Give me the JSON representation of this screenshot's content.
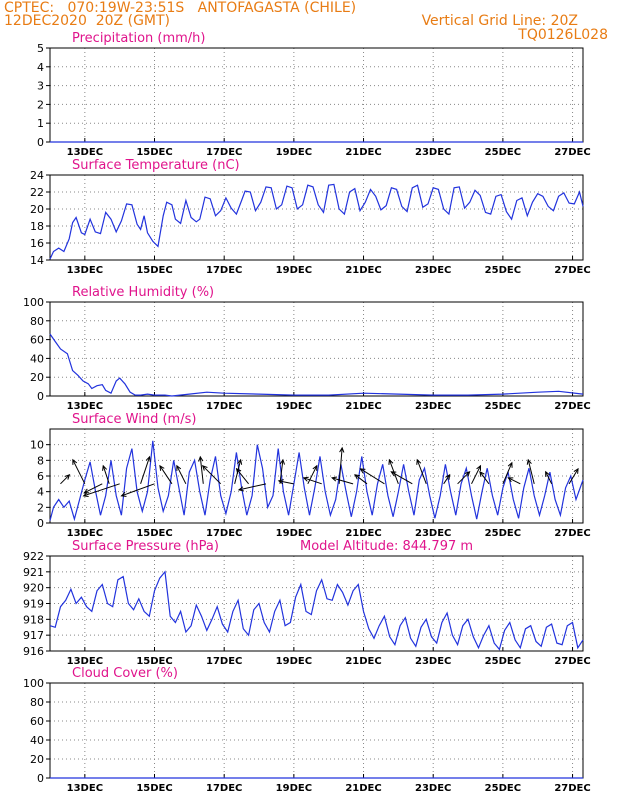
{
  "header": {
    "line1_left": "CPTEC:   070:19W-23:51S   ANTOFAGASTA (CHILE)",
    "line2_left": "12DEC2020  20Z (GMT)",
    "line2_right": "Vertical Grid Line: 20Z",
    "line3_right": "TQ0126L028"
  },
  "colors": {
    "header": "#e87c14",
    "title": "#e0148c",
    "line": "#2233dd",
    "arrow": "#000000",
    "grid": "#888888"
  },
  "x_tick_labels": [
    "13DEC",
    "15DEC",
    "17DEC",
    "19DEC",
    "21DEC",
    "23DEC",
    "25DEC",
    "27DEC"
  ],
  "chart_data": [
    {
      "type": "line",
      "title": "Precipitation (mm/h)",
      "ylim": [
        0,
        5
      ],
      "yticks": [
        "0",
        "1",
        "2",
        "3",
        "4",
        "5"
      ],
      "x_unit": "days since 12DEC2020 20Z",
      "x": [
        0,
        15.3
      ],
      "values": [
        0,
        0
      ]
    },
    {
      "type": "line",
      "title": "Surface Temperature (nC)",
      "ylim": [
        14,
        24
      ],
      "yticks": [
        "14",
        "16",
        "18",
        "20",
        "22",
        "24"
      ],
      "x": [
        0,
        0.1,
        0.25,
        0.4,
        0.55,
        0.65,
        0.75,
        0.9,
        1.0,
        1.15,
        1.3,
        1.45,
        1.6,
        1.75,
        1.9,
        2.05,
        2.2,
        2.35,
        2.5,
        2.6,
        2.7,
        2.8,
        2.95,
        3.1,
        3.25,
        3.35,
        3.5,
        3.6,
        3.75,
        3.9,
        4.05,
        4.2,
        4.3,
        4.45,
        4.6,
        4.75,
        4.9,
        5.05,
        5.2,
        5.35,
        5.5,
        5.6,
        5.75,
        5.9,
        6.05,
        6.2,
        6.35,
        6.5,
        6.65,
        6.8,
        6.95,
        7.1,
        7.25,
        7.4,
        7.55,
        7.7,
        7.85,
        8.0,
        8.15,
        8.3,
        8.45,
        8.6,
        8.75,
        8.9,
        9.05,
        9.2,
        9.35,
        9.5,
        9.65,
        9.8,
        9.95,
        10.1,
        10.25,
        10.4,
        10.55,
        10.7,
        10.85,
        11.0,
        11.15,
        11.3,
        11.45,
        11.6,
        11.75,
        11.9,
        12.05,
        12.2,
        12.35,
        12.5,
        12.65,
        12.8,
        12.95,
        13.1,
        13.25,
        13.4,
        13.55,
        13.7,
        13.85,
        14.0,
        14.15,
        14.3,
        14.45,
        14.6,
        14.75,
        14.9,
        15.05,
        15.2,
        15.3
      ],
      "values": [
        14.1,
        15.0,
        15.4,
        15.0,
        16.5,
        18.4,
        19.0,
        17.2,
        17.0,
        18.8,
        17.3,
        17.1,
        19.6,
        18.8,
        17.3,
        18.6,
        20.6,
        20.5,
        18.2,
        17.6,
        19.2,
        17.2,
        16.2,
        15.6,
        19.2,
        20.8,
        20.5,
        18.8,
        18.3,
        21.0,
        19.0,
        18.5,
        18.8,
        21.4,
        21.2,
        19.2,
        19.8,
        21.3,
        20.1,
        19.4,
        21.0,
        22.1,
        22.0,
        19.8,
        20.8,
        22.6,
        22.5,
        20.0,
        20.5,
        22.7,
        22.5,
        20.0,
        20.5,
        22.8,
        22.6,
        20.5,
        19.6,
        22.8,
        22.9,
        20.0,
        19.4,
        22.0,
        22.4,
        19.8,
        20.8,
        22.3,
        21.5,
        19.9,
        20.4,
        22.5,
        22.3,
        20.3,
        19.7,
        22.5,
        22.8,
        20.2,
        20.6,
        22.5,
        22.3,
        20.0,
        19.4,
        22.5,
        22.6,
        20.1,
        20.8,
        22.2,
        21.6,
        19.6,
        19.4,
        21.5,
        21.7,
        19.7,
        18.8,
        21.0,
        21.3,
        19.2,
        20.8,
        21.8,
        21.5,
        20.3,
        19.8,
        21.5,
        21.9,
        20.7,
        20.6,
        22.0,
        20.3
      ]
    },
    {
      "type": "line",
      "title": "Relative Humidity (%)",
      "ylim": [
        0,
        100
      ],
      "yticks": [
        "0",
        "20",
        "40",
        "60",
        "80",
        "100"
      ],
      "x": [
        0,
        0.15,
        0.3,
        0.5,
        0.65,
        0.8,
        0.95,
        1.1,
        1.2,
        1.35,
        1.5,
        1.6,
        1.75,
        1.9,
        2.0,
        2.15,
        2.3,
        2.45,
        2.6,
        2.8,
        3.0,
        3.3,
        3.5,
        4.0,
        4.5,
        5.0,
        6.0,
        7.0,
        8.0,
        9.0,
        10.0,
        11.0,
        12.0,
        13.0,
        14.0,
        14.6,
        15.3
      ],
      "values": [
        66,
        58,
        50,
        45,
        27,
        22,
        16,
        13,
        8,
        11,
        12,
        6,
        3,
        16,
        19,
        13,
        4,
        1,
        1,
        2,
        1,
        1,
        0,
        2,
        4,
        3,
        2,
        1,
        1,
        3,
        2,
        1,
        1,
        2,
        4,
        5,
        2
      ]
    },
    {
      "type": "line",
      "title": "Surface Wind (m/s)",
      "ylim": [
        0,
        12
      ],
      "yticks": [
        "0",
        "2",
        "4",
        "6",
        "8",
        "10"
      ],
      "x": [
        0,
        0.1,
        0.25,
        0.4,
        0.55,
        0.7,
        0.85,
        1.0,
        1.15,
        1.3,
        1.45,
        1.6,
        1.75,
        1.9,
        2.05,
        2.2,
        2.35,
        2.5,
        2.65,
        2.8,
        2.95,
        3.1,
        3.25,
        3.4,
        3.55,
        3.7,
        3.85,
        4.0,
        4.15,
        4.3,
        4.45,
        4.6,
        4.75,
        4.9,
        5.05,
        5.2,
        5.35,
        5.5,
        5.65,
        5.8,
        5.95,
        6.1,
        6.25,
        6.4,
        6.55,
        6.7,
        6.85,
        7.0,
        7.15,
        7.3,
        7.45,
        7.6,
        7.75,
        7.9,
        8.05,
        8.2,
        8.35,
        8.5,
        8.65,
        8.8,
        8.95,
        9.1,
        9.25,
        9.4,
        9.55,
        9.7,
        9.85,
        10.0,
        10.15,
        10.3,
        10.45,
        10.6,
        10.75,
        10.9,
        11.05,
        11.2,
        11.35,
        11.5,
        11.65,
        11.8,
        11.95,
        12.1,
        12.25,
        12.4,
        12.55,
        12.7,
        12.85,
        13.0,
        13.15,
        13.3,
        13.45,
        13.6,
        13.75,
        13.9,
        14.05,
        14.2,
        14.35,
        14.5,
        14.65,
        14.8,
        14.95,
        15.1,
        15.3
      ],
      "values": [
        0.3,
        2.0,
        3.0,
        2.0,
        2.8,
        0.5,
        3.0,
        5.5,
        7.8,
        4.2,
        1.0,
        3.5,
        8.0,
        3.5,
        1.0,
        7.0,
        9.5,
        4.0,
        1.5,
        4.0,
        10.5,
        4.5,
        1.5,
        3.5,
        8.0,
        4.5,
        1.0,
        6.5,
        8.0,
        4.0,
        1.0,
        5.5,
        8.5,
        3.5,
        1.2,
        4.0,
        9.0,
        4.5,
        1.0,
        3.5,
        10.0,
        7.0,
        2.0,
        3.5,
        9.5,
        4.0,
        1.0,
        5.0,
        9.0,
        4.5,
        1.0,
        4.5,
        8.5,
        4.0,
        1.0,
        3.0,
        7.5,
        4.0,
        0.8,
        4.0,
        8.5,
        4.0,
        1.0,
        5.0,
        7.5,
        3.5,
        0.8,
        4.0,
        7.5,
        4.0,
        1.0,
        5.5,
        7.0,
        3.5,
        0.6,
        3.5,
        7.5,
        4.0,
        1.0,
        5.0,
        7.0,
        3.5,
        0.5,
        4.0,
        7.0,
        3.5,
        1.0,
        4.5,
        6.5,
        3.0,
        0.6,
        4.5,
        7.0,
        3.5,
        1.0,
        3.5,
        6.5,
        3.0,
        1.0,
        4.5,
        6.0,
        3.0,
        5.5
      ],
      "vectors": {
        "x": [
          0.3,
          1.0,
          1.5,
          1.7,
          2.0,
          2.6,
          3.0,
          3.5,
          3.9,
          4.4,
          4.9,
          5.3,
          5.7,
          6.2,
          6.6,
          7.0,
          7.4,
          7.8,
          8.3,
          8.7,
          9.1,
          9.6,
          10.0,
          10.4,
          10.8,
          11.3,
          11.7,
          12.1,
          12.6,
          13.0,
          13.5,
          13.9,
          14.4,
          14.9
        ],
        "u": [
          1.5,
          -2.0,
          -3.0,
          -1.0,
          -6.0,
          1.5,
          -5.5,
          -2.0,
          -1.5,
          -0.5,
          -3.0,
          1.0,
          -2.0,
          -4.5,
          0.5,
          -2.5,
          1.5,
          -3.0,
          0.5,
          -3.5,
          -2.0,
          -4.0,
          -1.5,
          -3.5,
          -1.5,
          1.0,
          2.0,
          1.5,
          -1.5,
          1.5,
          -2.0,
          -1.0,
          -1.0,
          1.5
        ],
        "v": [
          1.5,
          4.0,
          -1.5,
          3.0,
          -2.0,
          4.5,
          -2.0,
          3.0,
          3.0,
          4.5,
          3.0,
          4.0,
          2.5,
          -1.0,
          4.0,
          0.5,
          3.0,
          1.0,
          6.0,
          1.0,
          1.5,
          2.5,
          4.0,
          2.0,
          4.0,
          1.5,
          2.0,
          3.0,
          2.0,
          3.5,
          1.0,
          4.0,
          2.0,
          2.5
        ]
      }
    },
    {
      "type": "line",
      "title": "Surface Pressure (hPa)",
      "annotation": "Model Altitude: 844.797 m",
      "ylim": [
        916,
        922
      ],
      "yticks": [
        "916",
        "917",
        "918",
        "919",
        "920",
        "921",
        "922"
      ],
      "x": [
        0,
        0.15,
        0.3,
        0.45,
        0.6,
        0.75,
        0.9,
        1.05,
        1.2,
        1.35,
        1.5,
        1.65,
        1.8,
        1.95,
        2.1,
        2.25,
        2.4,
        2.55,
        2.7,
        2.85,
        3.0,
        3.15,
        3.3,
        3.45,
        3.6,
        3.75,
        3.9,
        4.05,
        4.2,
        4.35,
        4.5,
        4.65,
        4.8,
        4.95,
        5.1,
        5.25,
        5.4,
        5.55,
        5.7,
        5.85,
        6.0,
        6.15,
        6.3,
        6.45,
        6.6,
        6.75,
        6.9,
        7.05,
        7.2,
        7.35,
        7.5,
        7.65,
        7.8,
        7.95,
        8.1,
        8.25,
        8.4,
        8.55,
        8.7,
        8.85,
        9.0,
        9.15,
        9.3,
        9.45,
        9.6,
        9.75,
        9.9,
        10.05,
        10.2,
        10.35,
        10.5,
        10.65,
        10.8,
        10.95,
        11.1,
        11.25,
        11.4,
        11.55,
        11.7,
        11.85,
        12.0,
        12.15,
        12.3,
        12.45,
        12.6,
        12.75,
        12.9,
        13.05,
        13.2,
        13.35,
        13.5,
        13.65,
        13.8,
        13.95,
        14.1,
        14.25,
        14.4,
        14.55,
        14.7,
        14.85,
        15.0,
        15.15,
        15.3
      ],
      "values": [
        917.6,
        917.5,
        918.8,
        919.2,
        919.9,
        919.0,
        919.4,
        918.8,
        918.5,
        919.8,
        920.2,
        919.0,
        918.8,
        920.5,
        920.7,
        919.0,
        918.6,
        919.3,
        918.5,
        918.2,
        919.8,
        920.6,
        921.0,
        918.2,
        917.8,
        918.5,
        917.2,
        917.6,
        918.9,
        918.2,
        917.3,
        918.0,
        918.8,
        917.7,
        917.2,
        918.5,
        919.2,
        917.4,
        917.0,
        918.6,
        919.0,
        917.8,
        917.2,
        918.5,
        919.2,
        917.6,
        917.8,
        919.4,
        920.2,
        918.5,
        918.3,
        919.8,
        920.5,
        919.3,
        919.2,
        920.2,
        919.7,
        918.9,
        919.8,
        920.2,
        918.5,
        917.4,
        916.8,
        917.6,
        918.2,
        916.9,
        916.4,
        917.6,
        918.1,
        916.8,
        916.3,
        917.5,
        918.0,
        916.9,
        916.5,
        917.8,
        918.4,
        917.0,
        916.4,
        917.6,
        918.0,
        916.9,
        916.2,
        917.0,
        917.6,
        916.5,
        916.1,
        917.3,
        917.8,
        916.7,
        916.2,
        917.4,
        917.6,
        916.6,
        916.3,
        917.5,
        917.7,
        916.5,
        916.4,
        917.6,
        917.8,
        916.2,
        916.7
      ]
    },
    {
      "type": "line",
      "title": "Cloud Cover (%)",
      "ylim": [
        0,
        100
      ],
      "yticks": [
        "0",
        "20",
        "40",
        "60",
        "80",
        "100"
      ],
      "x": [
        0,
        15.3
      ],
      "values": [
        0,
        0
      ]
    }
  ]
}
